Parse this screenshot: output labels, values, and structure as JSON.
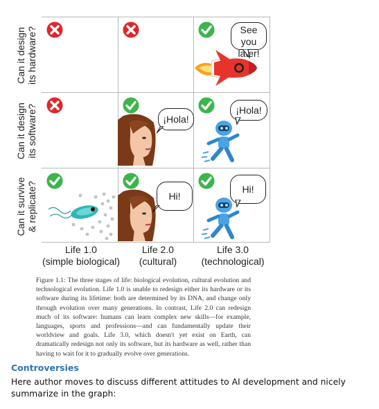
{
  "figure": {
    "row_labels": [
      {
        "line1": "Can it design",
        "line2": "its hardware?"
      },
      {
        "line1": "Can it design",
        "line2": "its software?"
      },
      {
        "line1": "Can it survive",
        "line2": "& replicate?"
      }
    ],
    "column_labels": [
      {
        "line1": "Life 1.0",
        "line2": "(simple biological)"
      },
      {
        "line1": "Life 2.0",
        "line2": "(cultural)"
      },
      {
        "line1": "Life 3.0",
        "line2": "(technological)"
      }
    ],
    "cells": [
      [
        {
          "status": "no"
        },
        {
          "status": "no"
        },
        {
          "status": "yes",
          "bubble": [
            "See you",
            "later!"
          ]
        }
      ],
      [
        {
          "status": "no"
        },
        {
          "status": "yes",
          "bubble": [
            "¡Hola!"
          ]
        },
        {
          "status": "yes",
          "bubble": [
            "¡Hola!"
          ]
        }
      ],
      [
        {
          "status": "yes"
        },
        {
          "status": "yes",
          "bubble": [
            "Hi!"
          ]
        },
        {
          "status": "yes",
          "bubble": [
            "Hi!"
          ]
        }
      ]
    ],
    "colors": {
      "yes": "#3cb54a",
      "no": "#e0262b",
      "grid": "#b8b8b8"
    },
    "caption": "Figure 1.1: The three stages of life: biological evolution, cultural evolution and technological evolution. Life 1.0 is unable to redesign either its hardware or its software during its lifetime: both are determined by its DNA, and change only through evolution over many generations. In contrast, Life 2.0 can redesign much of its software: humans can learn complex new skills—for example, languages, sports and professions—and can fundamentally update their worldview and goals. Life 3.0, which doesn't yet exist on Earth, can dramatically redesign not only its software, but its hardware as well, rather than having to wait for it to gradually evolve over generations."
  },
  "section": {
    "heading": "Controversies",
    "body": "Here author moves to discuss different attitudes to AI development and nicely summarize in the graph:",
    "heading_color": "#2e74b5"
  }
}
